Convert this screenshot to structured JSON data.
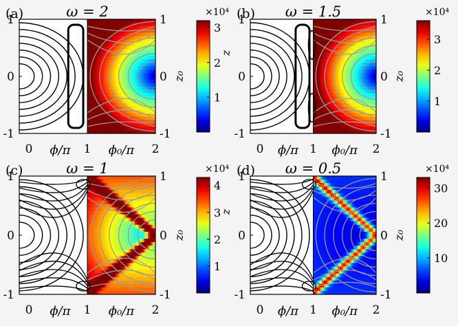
{
  "chart_data": [
    {
      "type": "heatmap",
      "panel_label": "(a)",
      "title": "ω = 2",
      "xlabel_left": "ϕ/π",
      "xlabel_right": "ϕ₀/π",
      "ylabel_left": "z",
      "colorbar_label": "z₀",
      "colorbar_exponent": "×10⁴",
      "colorbar_ticks": [
        "1",
        "2",
        "3"
      ],
      "colorbar_tick_values": [
        1,
        2,
        3
      ],
      "colorbar_range": [
        0,
        3.2
      ],
      "x_ticks": [
        "0",
        "1",
        "2"
      ],
      "y_ticks_left": [
        "1",
        "0",
        "-1"
      ],
      "y_ticks_right": [
        "1",
        "0",
        "-1"
      ],
      "xlim": [
        0,
        2
      ],
      "ylim": [
        -1,
        1
      ],
      "colormap": "jet"
    },
    {
      "type": "heatmap",
      "panel_label": "(b)",
      "title": "ω = 1.5",
      "xlabel_left": "ϕ/π",
      "xlabel_right": "ϕ₀/π",
      "ylabel_left": "z",
      "colorbar_label": "z₀",
      "colorbar_exponent": "×10⁴",
      "colorbar_ticks": [
        "1",
        "2",
        "3"
      ],
      "colorbar_tick_values": [
        1,
        2,
        3
      ],
      "colorbar_range": [
        0,
        3.6
      ],
      "x_ticks": [
        "0",
        "1",
        "2"
      ],
      "y_ticks_left": [
        "1",
        "0",
        "-1"
      ],
      "y_ticks_right": [
        "1",
        "0",
        "-1"
      ],
      "xlim": [
        0,
        2
      ],
      "ylim": [
        -1,
        1
      ],
      "colormap": "jet"
    },
    {
      "type": "heatmap",
      "panel_label": "(c)",
      "title": "ω = 1",
      "xlabel_left": "ϕ/π",
      "xlabel_right": "ϕ₀/π",
      "ylabel_left": "z",
      "colorbar_label": "z₀",
      "colorbar_exponent": "×10⁴",
      "colorbar_ticks": [
        "1",
        "2",
        "3",
        "4"
      ],
      "colorbar_tick_values": [
        1,
        2,
        3,
        4
      ],
      "colorbar_range": [
        0,
        4.3
      ],
      "x_ticks": [
        "0",
        "1",
        "2"
      ],
      "y_ticks_left": [
        "1",
        "0",
        "-1"
      ],
      "y_ticks_right": [
        "1",
        "0",
        "-1"
      ],
      "xlim": [
        0,
        2
      ],
      "ylim": [
        -1,
        1
      ],
      "colormap": "jet"
    },
    {
      "type": "heatmap",
      "panel_label": "(d)",
      "title": "ω = 0.5",
      "xlabel_left": "ϕ/π",
      "xlabel_right": "ϕ₀/π",
      "ylabel_left": "z",
      "colorbar_label": "z₀",
      "colorbar_exponent": "×10⁴",
      "colorbar_ticks": [
        "10",
        "20",
        "30"
      ],
      "colorbar_tick_values": [
        10,
        20,
        30
      ],
      "colorbar_range": [
        0,
        33
      ],
      "x_ticks": [
        "0",
        "1",
        "2"
      ],
      "y_ticks_left": [
        "1",
        "0",
        "-1"
      ],
      "y_ticks_right": [
        "1",
        "0",
        "-1"
      ],
      "xlim": [
        0,
        2
      ],
      "ylim": [
        -1,
        1
      ],
      "colormap": "jet"
    }
  ]
}
